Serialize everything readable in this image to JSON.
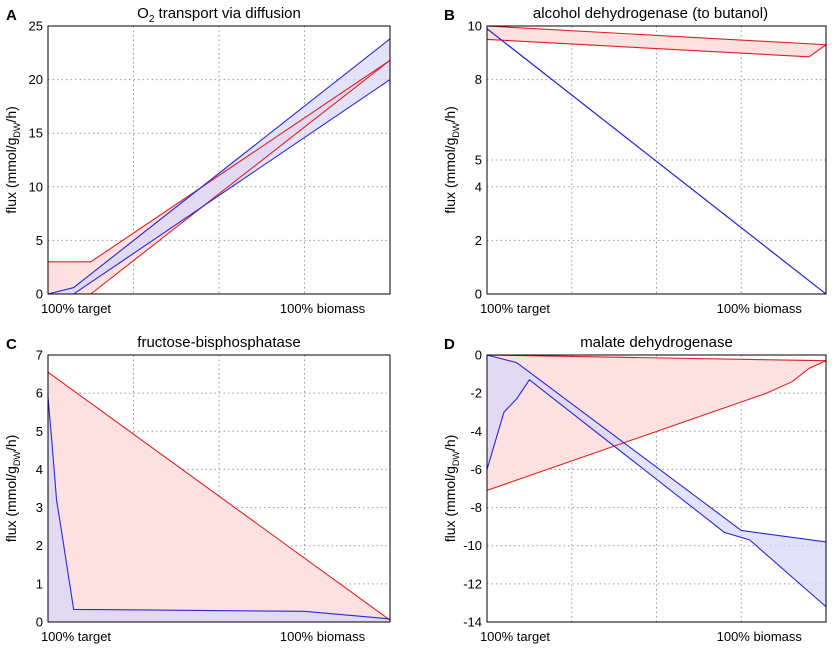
{
  "figure": {
    "ylabel_prefix": "flux (mmol/g",
    "ylabel_sub": "DW",
    "ylabel_suffix": "/h)",
    "band_colors": {
      "red_line": "#e02020",
      "red_fill": "#fde0e0",
      "blue_line": "#2a2ad8",
      "blue_fill": "#d8d8f8",
      "overlap_fill": "#d2c2ec"
    }
  },
  "chart_data": [
    {
      "id": "A",
      "letter": "A",
      "type": "area",
      "title_prefix": "O",
      "title_sub": "2",
      "title_suffix": " transport via diffusion",
      "x_tick_labels": [
        "100% target",
        "100% biomass"
      ],
      "xlim": [
        0,
        4
      ],
      "ylim": [
        0,
        25
      ],
      "y_ticks": [
        0,
        5,
        10,
        15,
        20,
        25
      ],
      "y_tick_labels": [
        "0",
        "5",
        "10",
        "15",
        "20",
        "25"
      ],
      "series": [
        {
          "name": "red",
          "color": "red",
          "upper": [
            [
              0,
              3
            ],
            [
              0.5,
              3
            ],
            [
              4,
              21.8
            ]
          ],
          "lower": [
            [
              0,
              0
            ],
            [
              0.5,
              0
            ],
            [
              4,
              21.8
            ]
          ]
        },
        {
          "name": "blue",
          "color": "blue",
          "upper": [
            [
              0,
              0
            ],
            [
              0.3,
              0.6
            ],
            [
              4,
              23.8
            ]
          ],
          "lower": [
            [
              0,
              0
            ],
            [
              0.3,
              0
            ],
            [
              4,
              20
            ]
          ]
        }
      ]
    },
    {
      "id": "B",
      "letter": "B",
      "type": "area",
      "title_prefix": "alcohol dehydrogenase (to butanol)",
      "title_sub": "",
      "title_suffix": "",
      "x_tick_labels": [
        "100% target",
        "100% biomass"
      ],
      "xlim": [
        0,
        4
      ],
      "ylim": [
        0,
        10
      ],
      "y_ticks": [
        0,
        2,
        4,
        5,
        8,
        10
      ],
      "y_tick_labels": [
        "0",
        "2",
        "4",
        "5",
        "8",
        "10"
      ],
      "series": [
        {
          "name": "red",
          "color": "red",
          "upper": [
            [
              0,
              10
            ],
            [
              4,
              9.3
            ]
          ],
          "lower": [
            [
              0,
              9.5
            ],
            [
              3.8,
              8.85
            ],
            [
              4,
              9.3
            ]
          ]
        },
        {
          "name": "blue",
          "color": "blue",
          "upper": [
            [
              0,
              9.9
            ],
            [
              4,
              0
            ]
          ],
          "lower": [
            [
              0,
              9.9
            ],
            [
              4,
              0
            ]
          ]
        }
      ]
    },
    {
      "id": "C",
      "letter": "C",
      "type": "area",
      "title_prefix": "fructose-bisphosphatase",
      "title_sub": "",
      "title_suffix": "",
      "x_tick_labels": [
        "100% target",
        "100% biomass"
      ],
      "xlim": [
        0,
        4
      ],
      "ylim": [
        0,
        7
      ],
      "y_ticks": [
        0,
        1,
        2,
        3,
        4,
        5,
        6,
        7
      ],
      "y_tick_labels": [
        "0",
        "1",
        "2",
        "3",
        "4",
        "5",
        "6",
        "7"
      ],
      "series": [
        {
          "name": "red",
          "color": "red",
          "upper": [
            [
              0,
              6.55
            ],
            [
              4,
              0.05
            ]
          ],
          "lower": [
            [
              0,
              0
            ],
            [
              4,
              0
            ]
          ]
        },
        {
          "name": "blue",
          "color": "blue",
          "upper": [
            [
              0,
              5.9
            ],
            [
              0.05,
              4.6
            ],
            [
              0.1,
              3.2
            ],
            [
              0.15,
              2.5
            ],
            [
              0.3,
              0.33
            ],
            [
              3,
              0.28
            ],
            [
              4,
              0.08
            ]
          ],
          "lower": [
            [
              0,
              0
            ],
            [
              4,
              0
            ]
          ]
        }
      ]
    },
    {
      "id": "D",
      "letter": "D",
      "type": "area",
      "title_prefix": "malate dehydrogenase",
      "title_sub": "",
      "title_suffix": "",
      "x_tick_labels": [
        "100% target",
        "100% biomass"
      ],
      "xlim": [
        0,
        4
      ],
      "ylim": [
        -14,
        0
      ],
      "y_ticks": [
        0,
        -2,
        -4,
        -6,
        -8,
        -10,
        -12,
        -14
      ],
      "y_tick_labels": [
        "0",
        "-2",
        "-4",
        "-6",
        "-8",
        "-10",
        "-12",
        "-14"
      ],
      "series": [
        {
          "name": "red",
          "color": "red",
          "upper": [
            [
              0,
              0
            ],
            [
              4,
              -0.3
            ]
          ],
          "lower": [
            [
              0,
              -7.1
            ],
            [
              3.3,
              -2
            ],
            [
              3.6,
              -1.4
            ],
            [
              3.8,
              -0.7
            ],
            [
              4,
              -0.3
            ]
          ]
        },
        {
          "name": "blue",
          "color": "blue",
          "upper": [
            [
              0,
              0
            ],
            [
              0.35,
              -0.4
            ],
            [
              3,
              -9.2
            ],
            [
              4,
              -9.8
            ]
          ],
          "lower": [
            [
              0,
              -6
            ],
            [
              0.2,
              -3
            ],
            [
              0.35,
              -2.3
            ],
            [
              0.5,
              -1.3
            ],
            [
              2.8,
              -9.3
            ],
            [
              3.1,
              -9.7
            ],
            [
              4,
              -13.2
            ]
          ]
        }
      ]
    }
  ]
}
